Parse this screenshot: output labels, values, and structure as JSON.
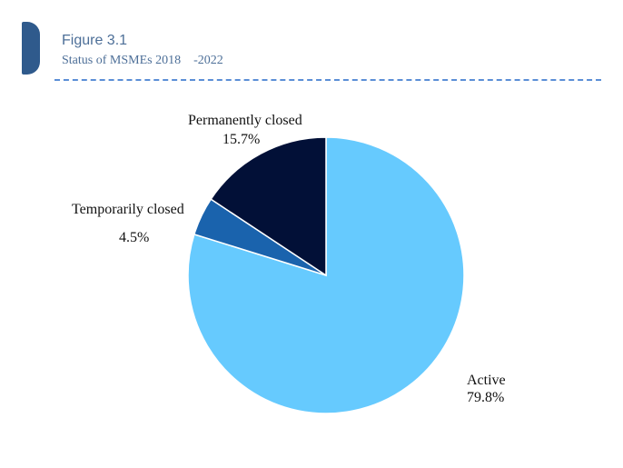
{
  "header": {
    "figure_label": "Figure 3.1",
    "title": "Status of MSMEs 2018    -2022"
  },
  "chart_data": {
    "type": "pie",
    "title": "Status of MSMEs 2018    -2022",
    "slices": [
      {
        "label": "Active",
        "value": 79.8,
        "value_label": "79.8%",
        "color": "#66cafe"
      },
      {
        "label": "Temporarily closed",
        "value": 4.5,
        "value_label": "4.5%",
        "color": "#1a63ad"
      },
      {
        "label": "Permanently closed",
        "value": 15.7,
        "value_label": "15.7%",
        "color": "#021037"
      }
    ],
    "start_angle_deg": 0,
    "direction": "clockwise"
  }
}
